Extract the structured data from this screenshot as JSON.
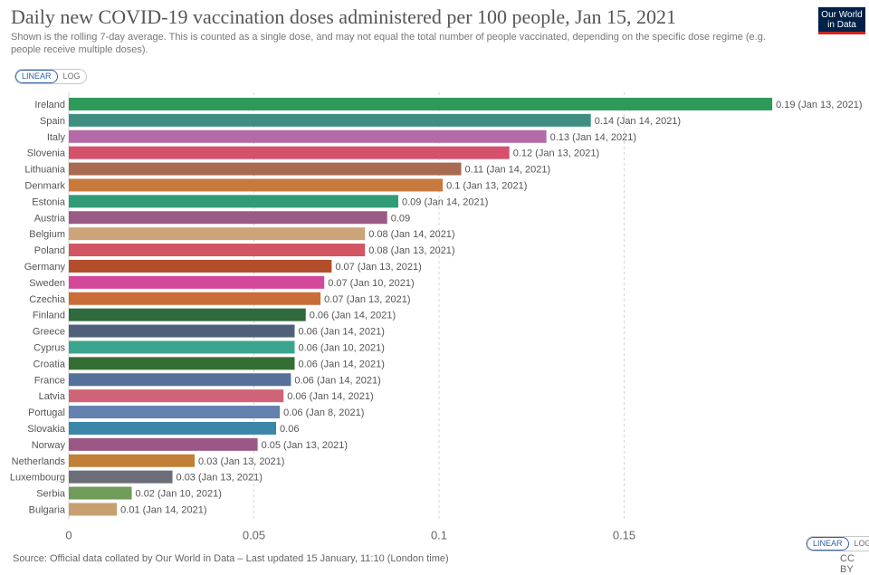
{
  "header": {
    "title": "Daily new COVID-19 vaccination doses administered per 100 people, Jan 15, 2021",
    "subtitle": "Shown is the rolling 7-day average. This is counted as a single dose, and may not equal the total number of people vaccinated, depending on the specific dose regime (e.g. people receive multiple doses).",
    "logo_line1": "Our World",
    "logo_line2": "in Data"
  },
  "scale_toggle_top": {
    "linear": "LINEAR",
    "log": "LOG"
  },
  "scale_toggle_bottom": {
    "linear": "LINEAR",
    "log": "LOG"
  },
  "footer": {
    "source": "Source: Official data collated by Our World in Data – Last updated 15 January, 11:10 (London time)",
    "license": "CC BY"
  },
  "chart_data": {
    "type": "bar",
    "orientation": "horizontal",
    "title": "Daily new COVID-19 vaccination doses administered per 100 people, Jan 15, 2021",
    "xlim": [
      0,
      0.19
    ],
    "xticks": [
      0,
      0.05,
      0.1,
      0.15
    ],
    "xtick_labels": [
      "0",
      "0.05",
      "0.1",
      "0.15"
    ],
    "grid": "vertical dashed",
    "categories": [
      "Ireland",
      "Spain",
      "Italy",
      "Slovenia",
      "Lithuania",
      "Denmark",
      "Estonia",
      "Austria",
      "Belgium",
      "Poland",
      "Germany",
      "Sweden",
      "Czechia",
      "Finland",
      "Greece",
      "Cyprus",
      "Croatia",
      "France",
      "Latvia",
      "Portugal",
      "Slovakia",
      "Norway",
      "Netherlands",
      "Luxembourg",
      "Serbia",
      "Bulgaria"
    ],
    "values": [
      0.19,
      0.141,
      0.129,
      0.119,
      0.106,
      0.101,
      0.089,
      0.086,
      0.08,
      0.08,
      0.071,
      0.069,
      0.068,
      0.064,
      0.061,
      0.061,
      0.061,
      0.06,
      0.058,
      0.057,
      0.056,
      0.051,
      0.034,
      0.028,
      0.017,
      0.013
    ],
    "value_labels": [
      "0.19 (Jan 13, 2021)",
      "0.14 (Jan 14, 2021)",
      "0.13 (Jan 14, 2021)",
      "0.12 (Jan 13, 2021)",
      "0.11 (Jan 14, 2021)",
      "0.1 (Jan 13, 2021)",
      "0.09 (Jan 14, 2021)",
      "0.09",
      "0.08 (Jan 14, 2021)",
      "0.08 (Jan 13, 2021)",
      "0.07 (Jan 13, 2021)",
      "0.07 (Jan 10, 2021)",
      "0.07 (Jan 13, 2021)",
      "0.06 (Jan 14, 2021)",
      "0.06 (Jan 14, 2021)",
      "0.06 (Jan 10, 2021)",
      "0.06 (Jan 14, 2021)",
      "0.06 (Jan 14, 2021)",
      "0.06 (Jan 14, 2021)",
      "0.06 (Jan 8, 2021)",
      "0.06",
      "0.05 (Jan 13, 2021)",
      "0.03 (Jan 13, 2021)",
      "0.03 (Jan 13, 2021)",
      "0.02 (Jan 10, 2021)",
      "0.01 (Jan 14, 2021)"
    ],
    "colors": [
      "#2e9a5a",
      "#3e8f82",
      "#b36aa6",
      "#d5506a",
      "#a86a50",
      "#c87a3e",
      "#2f9b77",
      "#9a5a86",
      "#cda47a",
      "#d25563",
      "#b24e2b",
      "#d4489a",
      "#c96e38",
      "#2f6b3c",
      "#51607a",
      "#3aa58c",
      "#356e33",
      "#55709a",
      "#cf6478",
      "#6480ae",
      "#3a85a8",
      "#9b5885",
      "#c08035",
      "#6b6e78",
      "#6f9c58",
      "#c6a070"
    ]
  }
}
